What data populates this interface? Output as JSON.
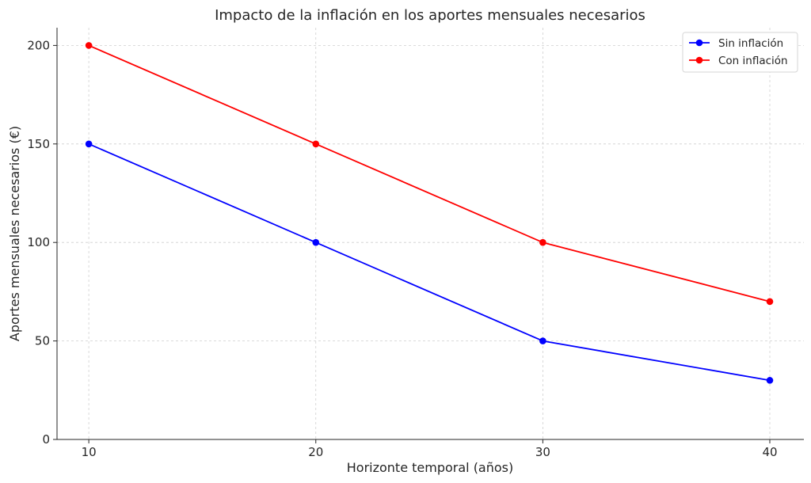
{
  "chart_data": {
    "type": "line",
    "title": "Impacto de la inflación en los aportes mensuales necesarios",
    "xlabel": "Horizonte temporal (años)",
    "ylabel": "Aportes mensuales necesarios (€)",
    "x": [
      10,
      20,
      30,
      40
    ],
    "xticks": [
      "10",
      "20",
      "30",
      "40"
    ],
    "xlim": [
      8.6,
      41.5
    ],
    "yticks": [
      "0",
      "50",
      "100",
      "150",
      "200"
    ],
    "ytick_values": [
      0,
      50,
      100,
      150,
      200
    ],
    "ylim": [
      0,
      209
    ],
    "grid": true,
    "legend_position": "top-right",
    "series": [
      {
        "name": "Sin inflación",
        "values": [
          150,
          100,
          50,
          30
        ],
        "color": "#0000ff"
      },
      {
        "name": "Con inflación",
        "values": [
          200,
          150,
          100,
          70
        ],
        "color": "#ff0000"
      }
    ]
  }
}
